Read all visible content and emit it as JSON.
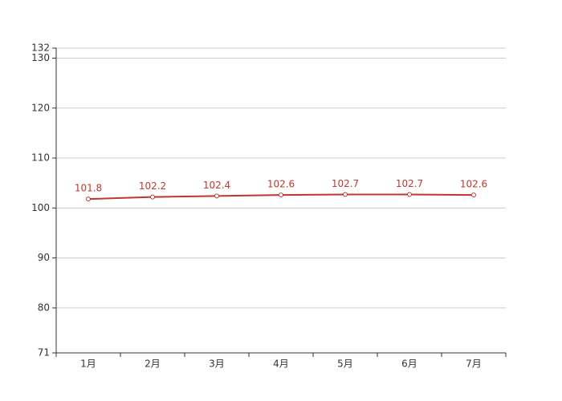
{
  "chart_data": {
    "type": "line",
    "categories": [
      "1月",
      "2月",
      "3月",
      "4月",
      "5月",
      "6月",
      "7月"
    ],
    "values": [
      101.8,
      102.2,
      102.4,
      102.6,
      102.7,
      102.7,
      102.6
    ],
    "color": "#c23531",
    "ylim": [
      71,
      132
    ],
    "yticks": [
      71,
      80,
      90,
      100,
      110,
      120,
      130,
      132
    ],
    "grid": true
  }
}
